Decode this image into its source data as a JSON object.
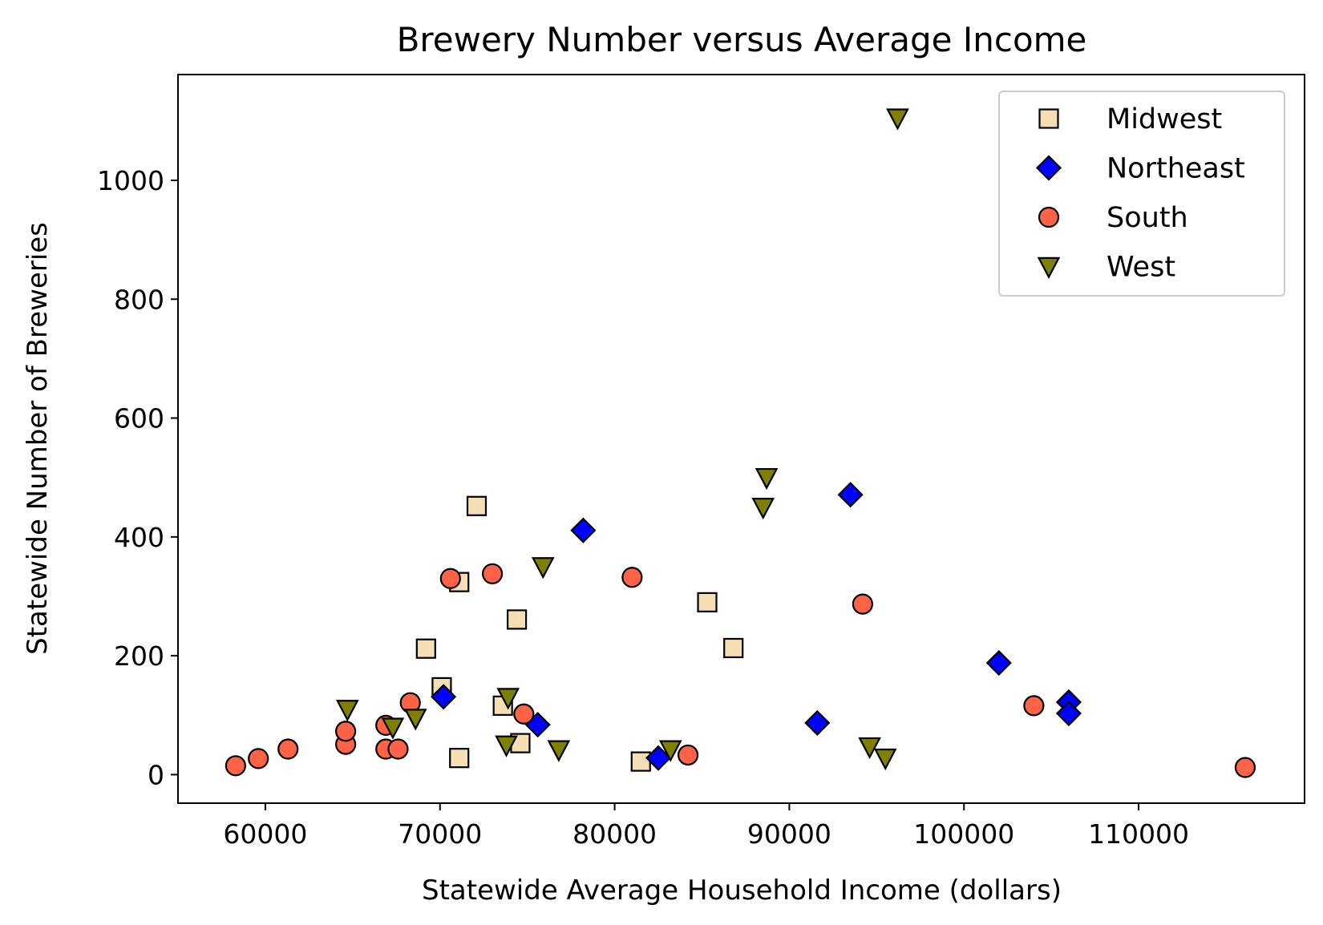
{
  "chart_data": {
    "type": "scatter",
    "title": "Brewery Number versus Average Income",
    "xlabel": "Statewide Average Household Income (dollars)",
    "ylabel": "Statewide Number of Breweries",
    "xlim": [
      55000,
      119500
    ],
    "ylim": [
      -48,
      1178
    ],
    "x_ticks": [
      60000,
      70000,
      80000,
      90000,
      100000,
      110000
    ],
    "y_ticks": [
      0,
      200,
      400,
      600,
      800,
      1000
    ],
    "grid": false,
    "legend_position": "top-right",
    "series": [
      {
        "name": "Midwest",
        "marker": "square",
        "color": "#f5deb3",
        "points": [
          [
            72100,
            452
          ],
          [
            71100,
            324
          ],
          [
            74400,
            261
          ],
          [
            69200,
            212
          ],
          [
            70100,
            147
          ],
          [
            73600,
            116
          ],
          [
            74600,
            53
          ],
          [
            71100,
            28
          ],
          [
            81500,
            22
          ],
          [
            85300,
            290
          ],
          [
            86800,
            213
          ]
        ]
      },
      {
        "name": "Northeast",
        "marker": "diamond",
        "color": "#0000ff",
        "points": [
          [
            78200,
            411
          ],
          [
            93500,
            471
          ],
          [
            70200,
            131
          ],
          [
            75600,
            84
          ],
          [
            82500,
            28
          ],
          [
            91600,
            87
          ],
          [
            102000,
            188
          ],
          [
            106000,
            122
          ],
          [
            106000,
            103
          ]
        ]
      },
      {
        "name": "South",
        "marker": "circle",
        "color": "#ff6347",
        "points": [
          [
            58300,
            15
          ],
          [
            59600,
            27
          ],
          [
            61300,
            43
          ],
          [
            64600,
            51
          ],
          [
            64600,
            73
          ],
          [
            66900,
            83
          ],
          [
            66900,
            43
          ],
          [
            67600,
            43
          ],
          [
            68300,
            121
          ],
          [
            70600,
            330
          ],
          [
            73000,
            338
          ],
          [
            74800,
            102
          ],
          [
            81000,
            332
          ],
          [
            84200,
            33
          ],
          [
            94200,
            287
          ],
          [
            104000,
            116
          ],
          [
            116100,
            12
          ]
        ]
      },
      {
        "name": "West",
        "marker": "triangle-down",
        "color": "#808000",
        "points": [
          [
            96200,
            1105
          ],
          [
            88700,
            500
          ],
          [
            88500,
            450
          ],
          [
            75900,
            350
          ],
          [
            64700,
            110
          ],
          [
            67300,
            80
          ],
          [
            68600,
            95
          ],
          [
            73900,
            130
          ],
          [
            73800,
            50
          ],
          [
            76800,
            42
          ],
          [
            83200,
            42
          ],
          [
            94600,
            47
          ],
          [
            95500,
            28
          ]
        ]
      }
    ]
  }
}
